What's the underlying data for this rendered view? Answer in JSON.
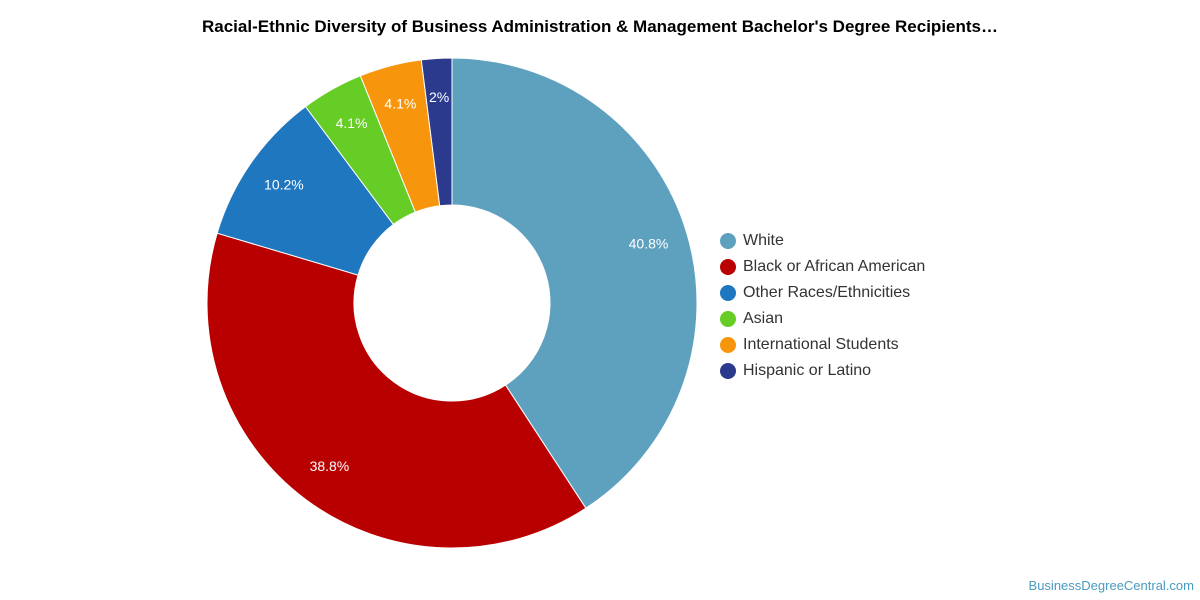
{
  "chart_data": {
    "type": "pie",
    "variant": "donut",
    "title": "Racial-Ethnic Diversity of Business Administration & Management Bachelor's Degree Recipients…",
    "categories": [
      "White",
      "Black or African American",
      "Other Races/Ethnicities",
      "Asian",
      "International Students",
      "Hispanic or Latino"
    ],
    "values": [
      40.8,
      38.8,
      10.2,
      4.1,
      4.1,
      2.0
    ],
    "labels": [
      "40.8%",
      "38.8%",
      "10.2%",
      "4.1%",
      "4.1%",
      "2%"
    ],
    "colors": [
      "#5ea1bf",
      "#b90000",
      "#1f77bf",
      "#66cc26",
      "#f7960d",
      "#2c3a8e"
    ],
    "legend_position": "right"
  },
  "credit": "BusinessDegreeCentral.com"
}
